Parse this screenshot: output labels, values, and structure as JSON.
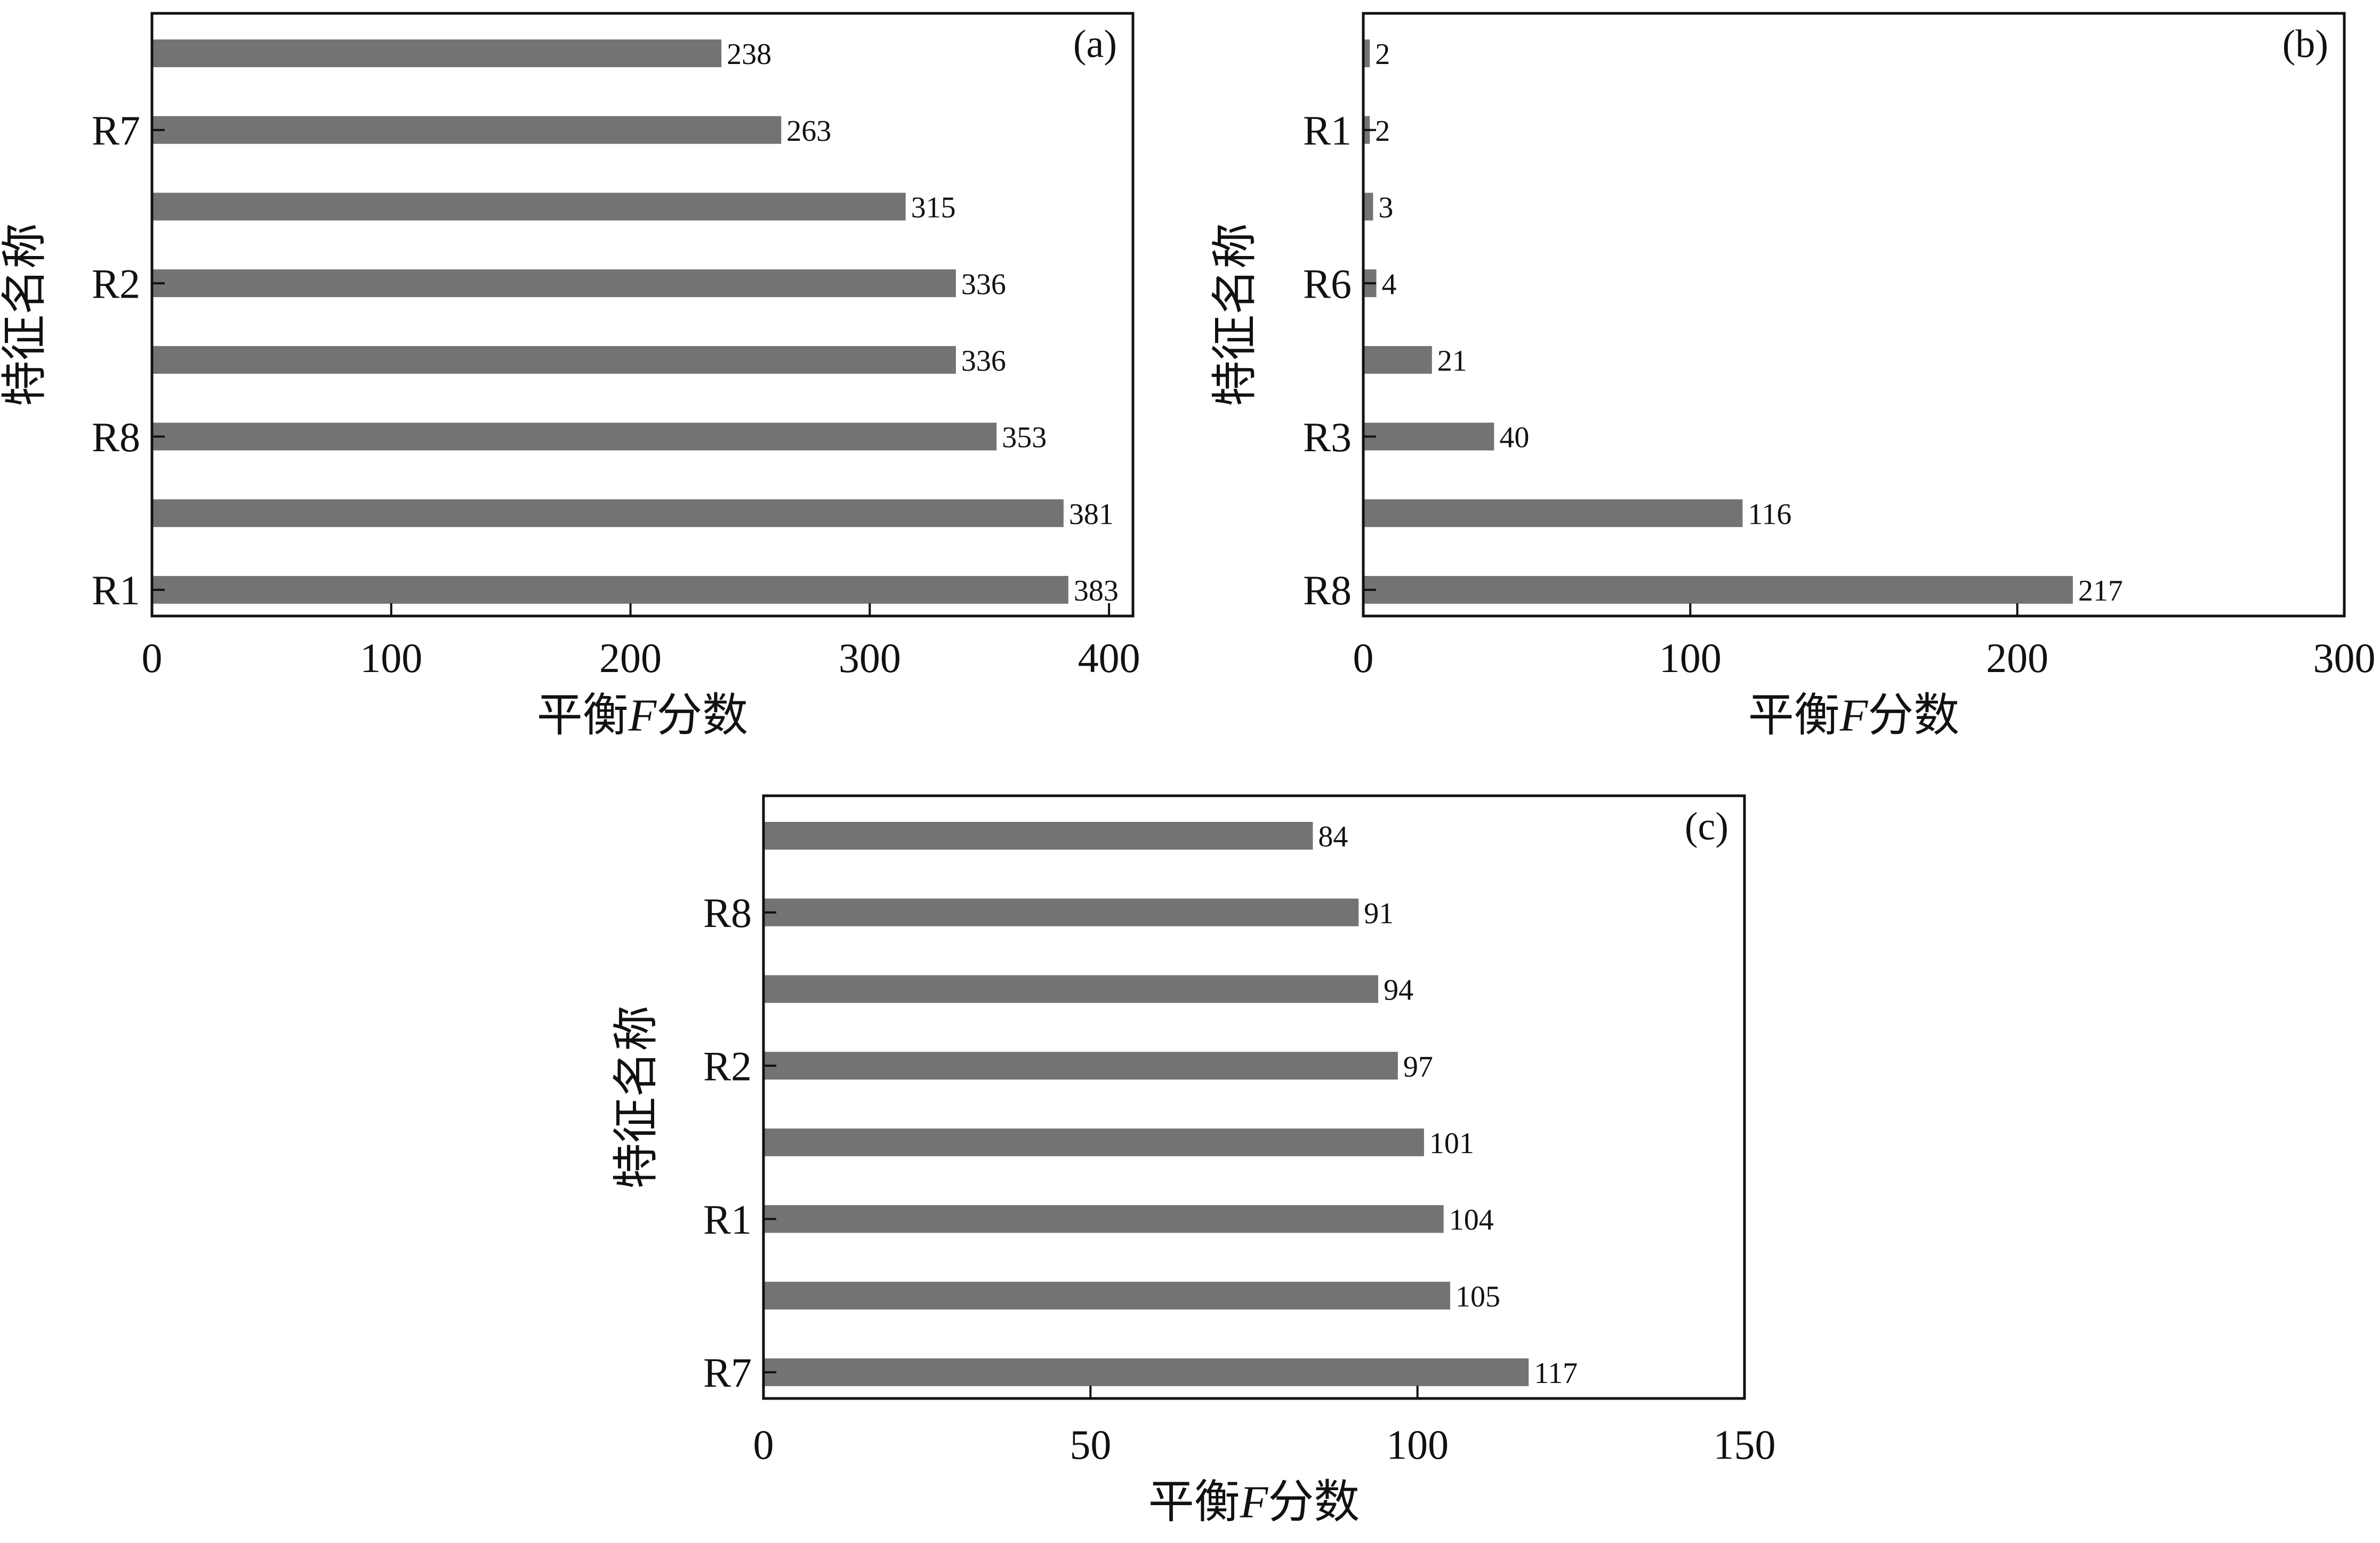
{
  "figure": {
    "background": "#ffffff",
    "bar_color": "#737373",
    "axis_color": "#111111"
  },
  "chart_data": [
    {
      "panel": "(a)",
      "type": "bar",
      "orientation": "horizontal",
      "xlabel": "平衡F分数",
      "ylabel": "特征名称",
      "xlim": [
        0,
        410
      ],
      "xticks": [
        0,
        100,
        200,
        300,
        400
      ],
      "grid": false,
      "values": [
        238,
        263,
        315,
        336,
        336,
        353,
        381,
        383
      ],
      "value_labels": [
        "238",
        "263",
        "315",
        "336",
        "336",
        "353",
        "381",
        "383"
      ],
      "category_labels": [
        "",
        "R7",
        "",
        "R2",
        "",
        "R8",
        "",
        "R1"
      ]
    },
    {
      "panel": "(b)",
      "type": "bar",
      "orientation": "horizontal",
      "xlabel": "平衡F分数",
      "ylabel": "特征名称",
      "xlim": [
        0,
        300
      ],
      "xticks": [
        0,
        100,
        200,
        300
      ],
      "grid": false,
      "values": [
        2,
        2,
        3,
        4,
        21,
        40,
        116,
        217
      ],
      "value_labels": [
        "2",
        "2",
        "3",
        "4",
        "21",
        "40",
        "116",
        "217"
      ],
      "category_labels": [
        "",
        "R1",
        "",
        "R6",
        "",
        "R3",
        "",
        "R8"
      ]
    },
    {
      "panel": "(c)",
      "type": "bar",
      "orientation": "horizontal",
      "xlabel": "平衡F分数",
      "ylabel": "特征名称",
      "xlim": [
        0,
        150
      ],
      "xticks": [
        0,
        50,
        100,
        150
      ],
      "grid": false,
      "values": [
        84,
        91,
        94,
        97,
        101,
        104,
        105,
        117
      ],
      "value_labels": [
        "84",
        "91",
        "94",
        "97",
        "101",
        "104",
        "105",
        "117"
      ],
      "category_labels": [
        "",
        "R8",
        "",
        "R2",
        "",
        "R1",
        "",
        "R7"
      ]
    }
  ]
}
